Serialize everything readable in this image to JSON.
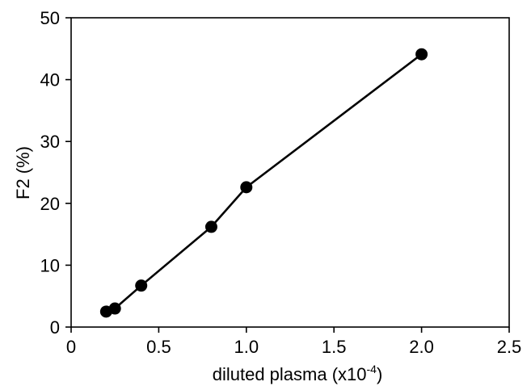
{
  "chart_data": {
    "type": "scatter",
    "xlabel": "diluted plasma (x10",
    "xlabel_superscript": "-4",
    "xlabel_suffix": ")",
    "ylabel": "F2 (%)",
    "xlim": [
      0,
      2.5
    ],
    "ylim": [
      0,
      50
    ],
    "x_ticks": [
      0,
      0.5,
      1.0,
      1.5,
      2.0,
      2.5
    ],
    "x_tick_labels": [
      "0",
      "0.5",
      "1.0",
      "1.5",
      "2.0",
      "2.5"
    ],
    "y_ticks": [
      0,
      10,
      20,
      30,
      40,
      50
    ],
    "y_tick_labels": [
      "0",
      "10",
      "20",
      "30",
      "40",
      "50"
    ],
    "grid": false,
    "series": [
      {
        "connected": true,
        "marker": "filled-circle",
        "color": "#000000",
        "x": [
          0.2,
          0.25,
          0.4,
          0.8,
          1.0,
          2.0
        ],
        "y": [
          2.5,
          3.0,
          6.7,
          16.2,
          22.6,
          44.1
        ]
      }
    ]
  }
}
